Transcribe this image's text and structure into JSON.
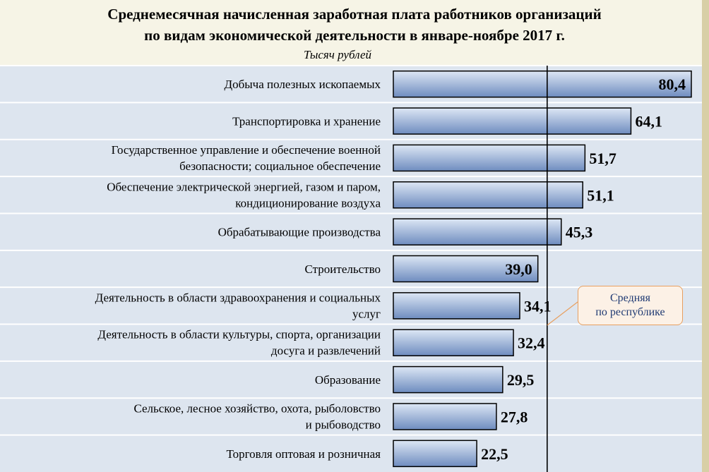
{
  "title_line1": "Среднемесячная начисленная заработная плата работников организаций",
  "title_line2": "по видам экономической деятельности в январе-ноябре 2017 г.",
  "unit": "Тысяч рублей",
  "average_label_line1": "Средняя",
  "average_label_line2": "по республике",
  "chart_data": {
    "type": "bar",
    "orientation": "horizontal",
    "title": "Среднемесячная начисленная заработная плата работников организаций по видам экономической деятельности в январе-ноябре 2017 г.",
    "unit": "Тысяч рублей",
    "categories": [
      [
        "Добыча полезных ископаемых"
      ],
      [
        "Транспортировка и хранение"
      ],
      [
        "Государственное управление и обеспечение военной",
        "безопасности; социальное обеспечение"
      ],
      [
        "Обеспечение электрической энергией, газом и паром,",
        "кондиционирование воздуха"
      ],
      [
        "Обрабатывающие производства"
      ],
      [
        "Строительство"
      ],
      [
        "Деятельность в области здравоохранения и социальных",
        "услуг"
      ],
      [
        "Деятельность в области культуры, спорта, организации",
        "досуга и развлечений"
      ],
      [
        "Образование"
      ],
      [
        "Сельское, лесное хозяйство, охота, рыболовство",
        "и рыбоводство"
      ],
      [
        "Торговля оптовая и розничная"
      ]
    ],
    "values": [
      80.4,
      64.1,
      51.7,
      51.1,
      45.3,
      39.0,
      34.1,
      32.4,
      29.5,
      27.8,
      22.5
    ],
    "value_labels": [
      "80,4",
      "64,1",
      "51,7",
      "51,1",
      "45,3",
      "39,0",
      "34,1",
      "32,4",
      "29,5",
      "27,8",
      "22,5"
    ],
    "value_label_inside": [
      true,
      false,
      false,
      false,
      false,
      true,
      false,
      false,
      false,
      false,
      false
    ],
    "reference_line": {
      "name": "Средняя по республике",
      "value": 41.5
    },
    "xlim": [
      0,
      80.4
    ],
    "colors": {
      "bar_fill_top": "#dde7f5",
      "bar_fill_bottom": "#6e8cbf",
      "bar_stroke": "#000000",
      "band": "#dde5ef",
      "band_line": "#ffffff",
      "callout_border": "#e8a060",
      "callout_text": "#1f3a73"
    }
  }
}
